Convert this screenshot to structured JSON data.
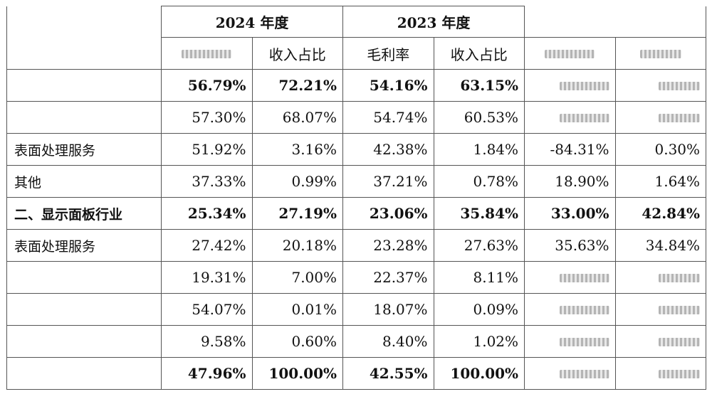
{
  "header": {
    "year_2024": "2024 年度",
    "year_2023": "2023 年度",
    "col_revenue_share": "收入占比",
    "col_gross_margin": "毛利率"
  },
  "rows": [
    {
      "label": "",
      "bold": true,
      "v": [
        "56.79%",
        "72.21%",
        "54.16%",
        "63.15%",
        "",
        ""
      ]
    },
    {
      "label": "",
      "bold": false,
      "v": [
        "57.30%",
        "68.07%",
        "54.74%",
        "60.53%",
        "",
        ""
      ]
    },
    {
      "label": "表面处理服务",
      "bold": false,
      "v": [
        "51.92%",
        "3.16%",
        "42.38%",
        "1.84%",
        "-84.31%",
        "0.30%"
      ]
    },
    {
      "label": "其他",
      "bold": false,
      "v": [
        "37.33%",
        "0.99%",
        "37.21%",
        "0.78%",
        "18.90%",
        "1.64%"
      ]
    },
    {
      "label": "二、显示面板行业",
      "bold": true,
      "v": [
        "25.34%",
        "27.19%",
        "23.06%",
        "35.84%",
        "33.00%",
        "42.84%"
      ]
    },
    {
      "label": "表面处理服务",
      "bold": false,
      "v": [
        "27.42%",
        "20.18%",
        "23.28%",
        "27.63%",
        "35.63%",
        "34.84%"
      ]
    },
    {
      "label": "",
      "bold": false,
      "v": [
        "19.31%",
        "7.00%",
        "22.37%",
        "8.11%",
        "",
        ""
      ]
    },
    {
      "label": "",
      "bold": false,
      "v": [
        "54.07%",
        "0.01%",
        "18.07%",
        "0.09%",
        "",
        ""
      ]
    },
    {
      "label": "",
      "bold": false,
      "v": [
        "9.58%",
        "0.60%",
        "8.40%",
        "1.02%",
        "",
        ""
      ]
    },
    {
      "label": "",
      "bold": true,
      "v": [
        "47.96%",
        "100.00%",
        "42.55%",
        "100.00%",
        "",
        ""
      ]
    }
  ]
}
